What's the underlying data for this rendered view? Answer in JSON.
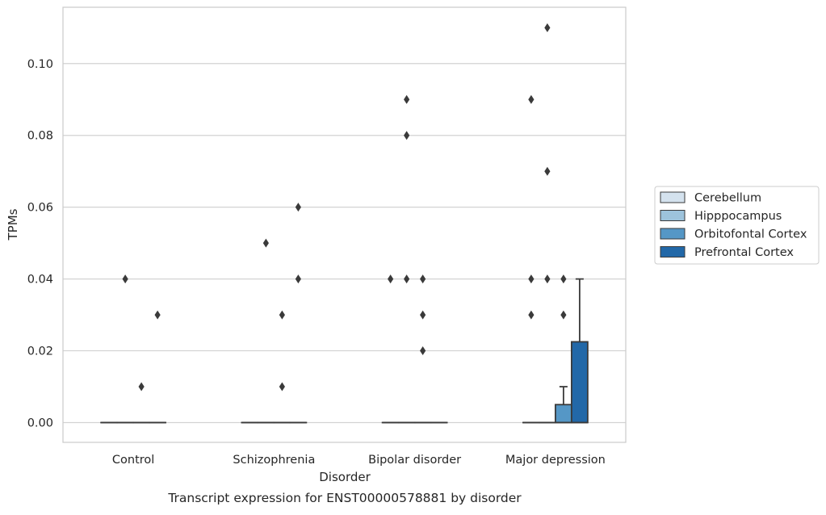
{
  "chart_data": {
    "type": "box",
    "title": "",
    "caption": "Transcript expression for ENST00000578881 by disorder",
    "xlabel": "Disorder",
    "ylabel": "TPMs",
    "ylim": [
      -0.0055,
      0.1155
    ],
    "yticks": [
      0.0,
      0.02,
      0.04,
      0.06,
      0.08,
      0.1
    ],
    "ytick_labels": [
      "0.00",
      "0.02",
      "0.04",
      "0.06",
      "0.08",
      "0.10"
    ],
    "grid": "horizontal",
    "legend_position": "right",
    "categories": [
      "Control",
      "Schizophrenia",
      "Bipolar disorder",
      "Major depression"
    ],
    "series": [
      {
        "name": "Cerebellum",
        "color": "#d4e2ee",
        "boxes": [
          {
            "category": "Control",
            "q1": 0,
            "median": 0,
            "q3": 0,
            "whisker_low": 0,
            "whisker_high": 0,
            "outliers": []
          },
          {
            "category": "Schizophrenia",
            "q1": 0,
            "median": 0,
            "q3": 0,
            "whisker_low": 0,
            "whisker_high": 0,
            "outliers": []
          },
          {
            "category": "Bipolar disorder",
            "q1": 0,
            "median": 0,
            "q3": 0,
            "whisker_low": 0,
            "whisker_high": 0,
            "outliers": [
              0.04
            ]
          },
          {
            "category": "Major depression",
            "q1": 0,
            "median": 0,
            "q3": 0,
            "whisker_low": 0,
            "whisker_high": 0,
            "outliers": [
              0.03,
              0.04,
              0.09
            ]
          }
        ]
      },
      {
        "name": "Hipppocampus",
        "color": "#9dc3dc",
        "boxes": [
          {
            "category": "Control",
            "q1": 0,
            "median": 0,
            "q3": 0,
            "whisker_low": 0,
            "whisker_high": 0,
            "outliers": [
              0.04
            ]
          },
          {
            "category": "Schizophrenia",
            "q1": 0,
            "median": 0,
            "q3": 0,
            "whisker_low": 0,
            "whisker_high": 0,
            "outliers": [
              0.05
            ]
          },
          {
            "category": "Bipolar disorder",
            "q1": 0,
            "median": 0,
            "q3": 0,
            "whisker_low": 0,
            "whisker_high": 0,
            "outliers": [
              0.04,
              0.08,
              0.09
            ]
          },
          {
            "category": "Major depression",
            "q1": 0,
            "median": 0,
            "q3": 0,
            "whisker_low": 0,
            "whisker_high": 0,
            "outliers": [
              0.04,
              0.07,
              0.11
            ]
          }
        ]
      },
      {
        "name": "Orbitofontal Cortex",
        "color": "#5597c6",
        "boxes": [
          {
            "category": "Control",
            "q1": 0,
            "median": 0,
            "q3": 0,
            "whisker_low": 0,
            "whisker_high": 0,
            "outliers": [
              0.01
            ]
          },
          {
            "category": "Schizophrenia",
            "q1": 0,
            "median": 0,
            "q3": 0,
            "whisker_low": 0,
            "whisker_high": 0,
            "outliers": [
              0.01,
              0.03
            ]
          },
          {
            "category": "Bipolar disorder",
            "q1": 0,
            "median": 0,
            "q3": 0,
            "whisker_low": 0,
            "whisker_high": 0,
            "outliers": [
              0.02,
              0.03,
              0.04
            ]
          },
          {
            "category": "Major depression",
            "q1": 0,
            "median": 0,
            "q3": 0.005,
            "whisker_low": 0,
            "whisker_high": 0.01,
            "outliers": [
              0.03,
              0.04
            ]
          }
        ]
      },
      {
        "name": "Prefrontal Cortex",
        "color": "#2268a8",
        "boxes": [
          {
            "category": "Control",
            "q1": 0,
            "median": 0,
            "q3": 0,
            "whisker_low": 0,
            "whisker_high": 0,
            "outliers": [
              0.03
            ]
          },
          {
            "category": "Schizophrenia",
            "q1": 0,
            "median": 0,
            "q3": 0,
            "whisker_low": 0,
            "whisker_high": 0,
            "outliers": [
              0.04,
              0.06
            ]
          },
          {
            "category": "Bipolar disorder",
            "q1": 0,
            "median": 0,
            "q3": 0,
            "whisker_low": 0,
            "whisker_high": 0,
            "outliers": []
          },
          {
            "category": "Major depression",
            "q1": 0,
            "median": 0,
            "q3": 0.0225,
            "whisker_low": 0,
            "whisker_high": 0.04,
            "outliers": []
          }
        ]
      }
    ]
  }
}
